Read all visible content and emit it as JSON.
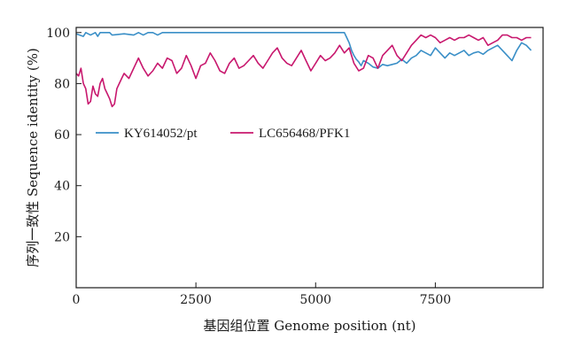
{
  "chart_data": {
    "type": "line",
    "xlabel": "基因组位置 Genome position (nt)",
    "ylabel": "序列一致性 Sequence identity (%)",
    "xlim": [
      0,
      9750
    ],
    "ylim": [
      0,
      102
    ],
    "x_ticks": [
      0,
      2500,
      5000,
      7500
    ],
    "y_ticks": [
      20,
      40,
      60,
      80,
      100
    ],
    "grid": false,
    "legend_position": "middle-left",
    "series": [
      {
        "name": "KY614052/pt",
        "color": "#3a8fc7",
        "x": [
          0,
          150,
          200,
          300,
          400,
          450,
          500,
          700,
          750,
          1000,
          1200,
          1300,
          1400,
          1500,
          1600,
          1700,
          1800,
          2000,
          2500,
          3000,
          3500,
          4000,
          4500,
          5000,
          5500,
          5600,
          5650,
          5700,
          5750,
          5800,
          5850,
          5900,
          5950,
          6000,
          6100,
          6200,
          6300,
          6400,
          6500,
          6600,
          6700,
          6800,
          6900,
          7000,
          7100,
          7200,
          7300,
          7400,
          7500,
          7600,
          7700,
          7800,
          7900,
          8000,
          8100,
          8200,
          8300,
          8400,
          8500,
          8600,
          8700,
          8800,
          8900,
          9000,
          9100,
          9200,
          9300,
          9400,
          9500
        ],
        "values": [
          99.5,
          98.5,
          100,
          99,
          100,
          98.5,
          100,
          100,
          99,
          99.5,
          99,
          100,
          99,
          100,
          100,
          99,
          100,
          100,
          100,
          100,
          100,
          100,
          100,
          100,
          100,
          100,
          98,
          96,
          93,
          91,
          89.5,
          88.5,
          87,
          89,
          88,
          86.5,
          86,
          87.5,
          87,
          87.5,
          88,
          89.5,
          88,
          90,
          91,
          93,
          92,
          91,
          94,
          92,
          90,
          92,
          91,
          92,
          93,
          91,
          92,
          92.5,
          91.5,
          93,
          94,
          95,
          93,
          91,
          89,
          93,
          96,
          95,
          93
        ]
      },
      {
        "name": "LC656468/PFK1",
        "color": "#c8186e",
        "x": [
          0,
          50,
          100,
          150,
          200,
          250,
          300,
          350,
          400,
          450,
          500,
          550,
          600,
          650,
          700,
          750,
          800,
          850,
          900,
          950,
          1000,
          1100,
          1200,
          1300,
          1400,
          1500,
          1600,
          1700,
          1800,
          1900,
          2000,
          2100,
          2200,
          2300,
          2400,
          2500,
          2600,
          2700,
          2800,
          2900,
          3000,
          3100,
          3200,
          3300,
          3400,
          3500,
          3600,
          3700,
          3800,
          3900,
          4000,
          4100,
          4200,
          4300,
          4400,
          4500,
          4600,
          4700,
          4800,
          4900,
          5000,
          5100,
          5200,
          5300,
          5400,
          5500,
          5600,
          5700,
          5800,
          5900,
          6000,
          6100,
          6200,
          6300,
          6400,
          6500,
          6600,
          6700,
          6800,
          6900,
          7000,
          7100,
          7200,
          7300,
          7400,
          7500,
          7600,
          7700,
          7800,
          7900,
          8000,
          8100,
          8200,
          8300,
          8400,
          8500,
          8600,
          8700,
          8800,
          8900,
          9000,
          9100,
          9200,
          9300,
          9400,
          9500
        ],
        "values": [
          84,
          83,
          86,
          80,
          78,
          72,
          73,
          79,
          76,
          75,
          80,
          82,
          78,
          76,
          74,
          71,
          72,
          78,
          80,
          82,
          84,
          82,
          86,
          90,
          86,
          83,
          85,
          88,
          86,
          90,
          89,
          84,
          86,
          91,
          87,
          82,
          87,
          88,
          92,
          89,
          85,
          84,
          88,
          90,
          86,
          87,
          89,
          91,
          88,
          86,
          89,
          92,
          94,
          90,
          88,
          87,
          90,
          93,
          89,
          85,
          88,
          91,
          89,
          90,
          92,
          95,
          92,
          94,
          88,
          85,
          86,
          91,
          90,
          86,
          91,
          93,
          95,
          91,
          89,
          92,
          95,
          97,
          99,
          98,
          99,
          98,
          96,
          97,
          98,
          97,
          98,
          98,
          99,
          98,
          97,
          98,
          95,
          96,
          97,
          99,
          99,
          98,
          98,
          97,
          98,
          98
        ]
      }
    ]
  }
}
